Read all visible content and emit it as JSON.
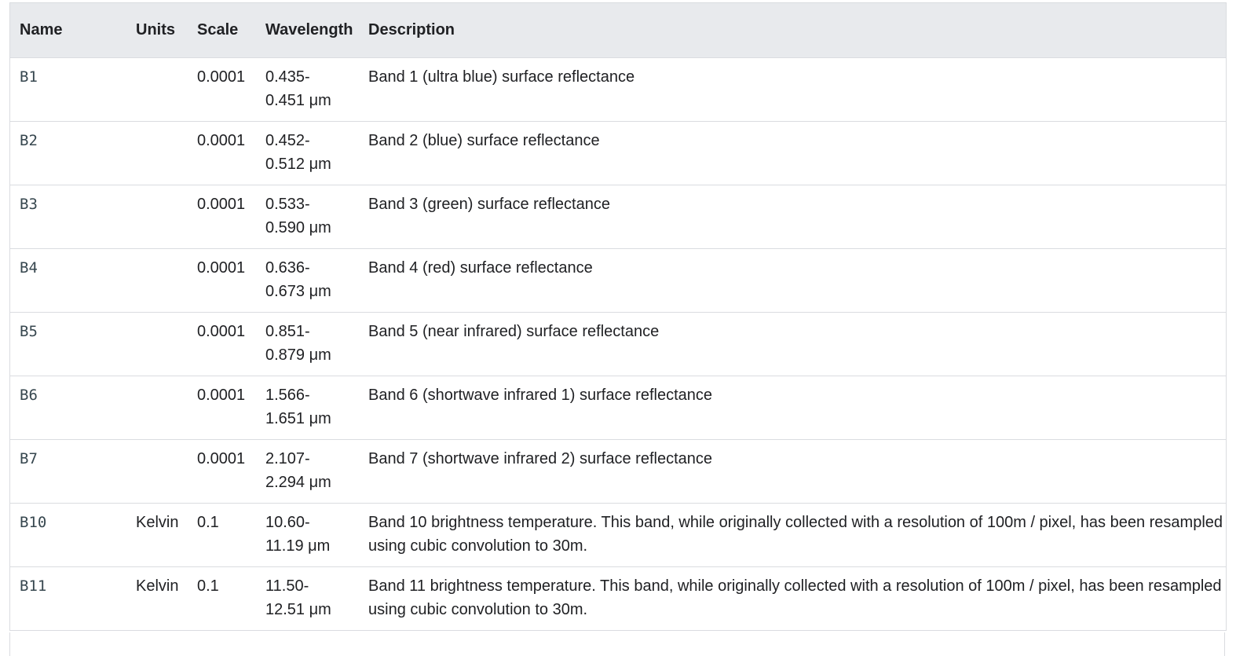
{
  "table": {
    "headers": {
      "name": "Name",
      "units": "Units",
      "scale": "Scale",
      "wavelength": "Wavelength",
      "description": "Description"
    },
    "rows": [
      {
        "name": "B1",
        "units": "",
        "scale": "0.0001",
        "wavelength": "0.435-0.451 μm",
        "description": "Band 1 (ultra blue) surface reflectance"
      },
      {
        "name": "B2",
        "units": "",
        "scale": "0.0001",
        "wavelength": "0.452-0.512 μm",
        "description": "Band 2 (blue) surface reflectance"
      },
      {
        "name": "B3",
        "units": "",
        "scale": "0.0001",
        "wavelength": "0.533-0.590 μm",
        "description": "Band 3 (green) surface reflectance"
      },
      {
        "name": "B4",
        "units": "",
        "scale": "0.0001",
        "wavelength": "0.636-0.673 μm",
        "description": "Band 4 (red) surface reflectance"
      },
      {
        "name": "B5",
        "units": "",
        "scale": "0.0001",
        "wavelength": "0.851-0.879 μm",
        "description": "Band 5 (near infrared) surface reflectance"
      },
      {
        "name": "B6",
        "units": "",
        "scale": "0.0001",
        "wavelength": "1.566-1.651 μm",
        "description": "Band 6 (shortwave infrared 1) surface reflectance"
      },
      {
        "name": "B7",
        "units": "",
        "scale": "0.0001",
        "wavelength": "2.107-2.294 μm",
        "description": "Band 7 (shortwave infrared 2) surface reflectance"
      },
      {
        "name": "B10",
        "units": "Kelvin",
        "scale": "0.1",
        "wavelength": "10.60-11.19 μm",
        "description": "Band 10 brightness temperature. This band, while originally collected with a resolution of 100m / pixel, has been resampled using cubic convolution to 30m."
      },
      {
        "name": "B11",
        "units": "Kelvin",
        "scale": "0.1",
        "wavelength": "11.50-12.51 μm",
        "description": "Band 11 brightness temperature. This band, while originally collected with a resolution of 100m / pixel, has been resampled using cubic convolution to 30m."
      }
    ]
  }
}
